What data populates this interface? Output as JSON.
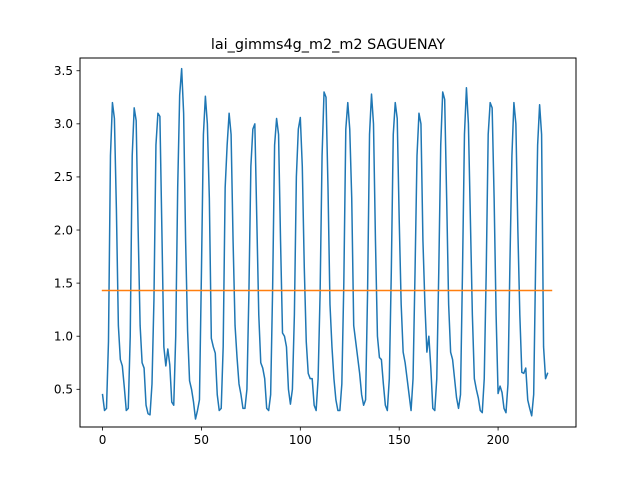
{
  "chart_data": {
    "type": "line",
    "title": "lai_gimms4g_m2_m2 SAGUENAY",
    "xlabel": "",
    "ylabel": "",
    "xlim": [
      -11.4,
      239.4
    ],
    "ylim": [
      0.145,
      3.62
    ],
    "x_ticks": [
      0,
      50,
      100,
      150,
      200
    ],
    "y_ticks": [
      0.5,
      1.0,
      1.5,
      2.0,
      2.5,
      3.0,
      3.5
    ],
    "x_tick_labels": [
      "0",
      "50",
      "100",
      "150",
      "200"
    ],
    "y_tick_labels": [
      "0.5",
      "1.0",
      "1.5",
      "2.0",
      "2.5",
      "3.0",
      "3.5"
    ],
    "grid": false,
    "legend": "none",
    "series": [
      {
        "color": "#1f77b4",
        "x_start": 0,
        "x_step": 1,
        "values": [
          0.45,
          0.3,
          0.32,
          0.95,
          2.7,
          3.2,
          3.05,
          2.2,
          1.1,
          0.78,
          0.72,
          0.52,
          0.3,
          0.32,
          1.0,
          2.7,
          3.15,
          3.03,
          2.0,
          1.1,
          0.75,
          0.7,
          0.35,
          0.27,
          0.26,
          0.55,
          1.35,
          2.8,
          3.1,
          3.07,
          2.0,
          0.9,
          0.72,
          0.88,
          0.73,
          0.38,
          0.35,
          1.0,
          2.4,
          3.27,
          3.52,
          3.1,
          1.9,
          1.05,
          0.58,
          0.5,
          0.38,
          0.22,
          0.3,
          0.4,
          1.6,
          2.9,
          3.26,
          3.0,
          2.3,
          0.98,
          0.9,
          0.84,
          0.45,
          0.3,
          0.32,
          0.9,
          2.4,
          2.8,
          3.1,
          2.9,
          1.9,
          1.1,
          0.8,
          0.55,
          0.45,
          0.32,
          0.32,
          0.5,
          1.4,
          2.6,
          2.95,
          3.0,
          2.1,
          1.2,
          0.75,
          0.7,
          0.6,
          0.32,
          0.3,
          0.45,
          1.45,
          2.8,
          3.05,
          2.9,
          1.9,
          1.03,
          1.0,
          0.9,
          0.5,
          0.36,
          0.5,
          1.2,
          2.5,
          2.95,
          3.06,
          2.6,
          1.65,
          0.95,
          0.65,
          0.6,
          0.6,
          0.35,
          0.3,
          0.6,
          1.4,
          2.7,
          3.3,
          3.25,
          2.4,
          1.3,
          0.9,
          0.6,
          0.4,
          0.3,
          0.3,
          0.55,
          1.5,
          2.95,
          3.2,
          2.95,
          2.3,
          1.1,
          0.95,
          0.8,
          0.65,
          0.45,
          0.35,
          0.4,
          1.4,
          2.9,
          3.28,
          3.0,
          1.9,
          1.0,
          0.8,
          0.78,
          0.55,
          0.35,
          0.3,
          0.6,
          1.6,
          2.9,
          3.2,
          3.05,
          2.1,
          1.3,
          0.85,
          0.75,
          0.6,
          0.45,
          0.3,
          0.6,
          1.6,
          2.7,
          3.1,
          3.0,
          1.9,
          1.3,
          0.85,
          1.0,
          0.7,
          0.32,
          0.3,
          0.6,
          1.6,
          2.8,
          3.3,
          3.23,
          2.3,
          1.3,
          0.85,
          0.78,
          0.6,
          0.42,
          0.32,
          0.45,
          1.6,
          2.9,
          3.34,
          3.0,
          2.1,
          1.2,
          0.6,
          0.5,
          0.42,
          0.3,
          0.28,
          0.6,
          1.6,
          2.9,
          3.2,
          3.15,
          2.3,
          1.2,
          0.46,
          0.53,
          0.47,
          0.32,
          0.28,
          0.55,
          1.7,
          2.7,
          3.2,
          3.0,
          2.0,
          1.2,
          0.66,
          0.65,
          0.7,
          0.4,
          0.32,
          0.25,
          0.45,
          1.7,
          2.8,
          3.18,
          2.9,
          0.9,
          0.6,
          0.65
        ]
      },
      {
        "color": "#ff7f0e",
        "x": [
          0,
          227
        ],
        "values": [
          1.43,
          1.43
        ]
      }
    ]
  }
}
